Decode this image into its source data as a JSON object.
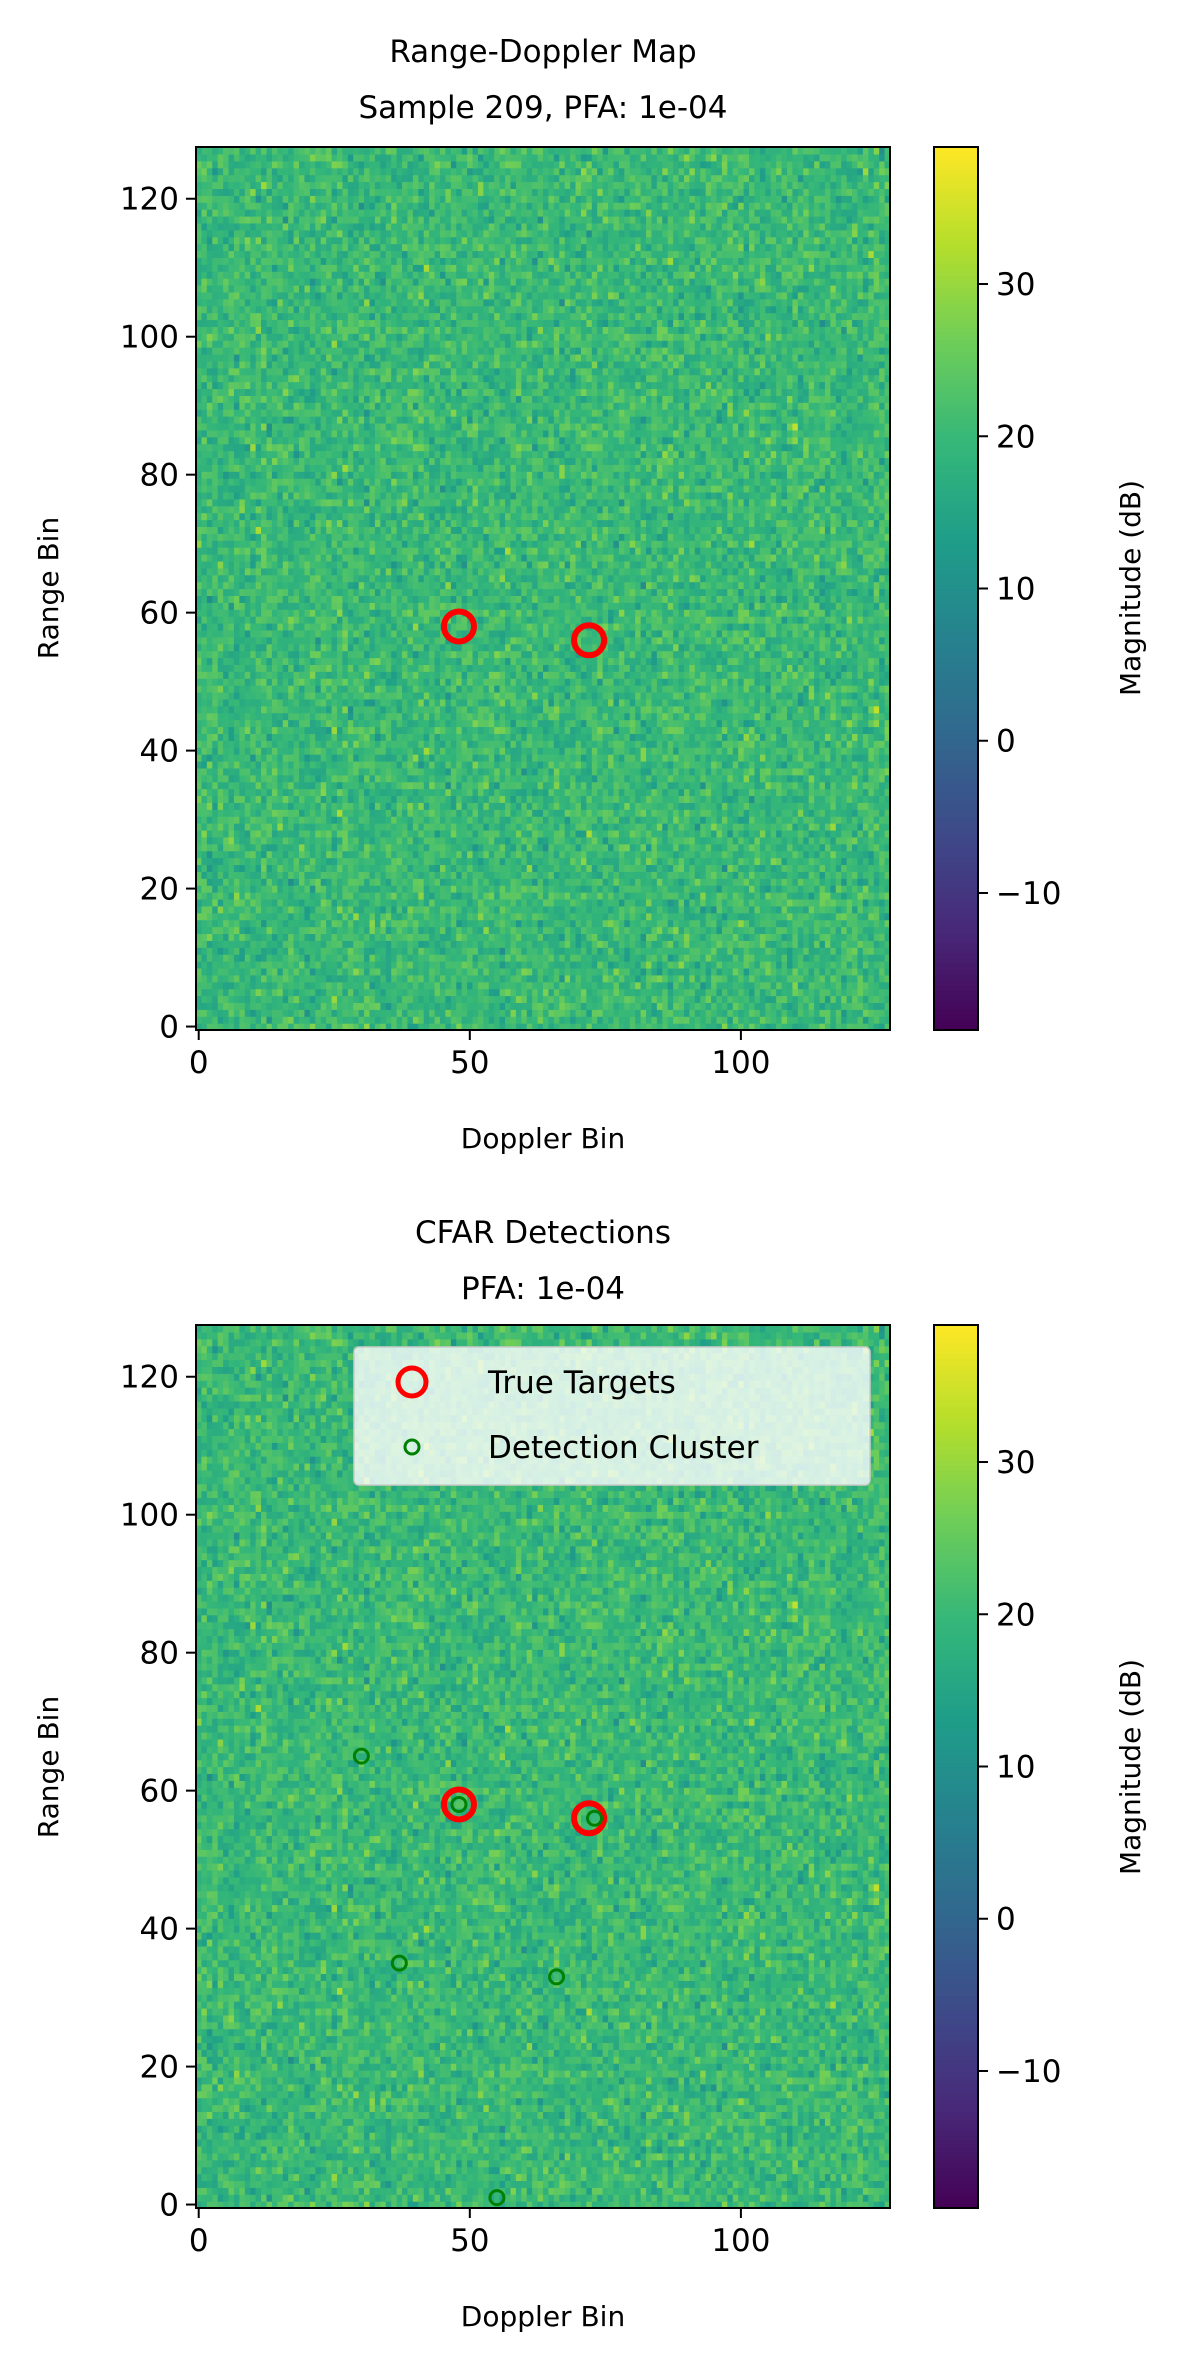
{
  "colorbar": {
    "label": "Magnitude (dB)",
    "range": [
      -19,
      39
    ],
    "ticks": [
      -10,
      0,
      10,
      20,
      30
    ],
    "tick_labels": [
      "−10",
      "0",
      "10",
      "20",
      "30"
    ],
    "colormap": "viridis"
  },
  "legend": {
    "true_targets": "True Targets",
    "detection_cluster": "Detection Cluster"
  },
  "colors": {
    "true_target": "#ff0000",
    "detection": "#008000"
  },
  "chart_data": [
    {
      "type": "heatmap",
      "title": "Range-Doppler Map",
      "subtitle": "Sample 209, PFA: 1e-04",
      "xlabel": "Doppler Bin",
      "ylabel": "Range Bin",
      "xlim": [
        -0.5,
        127.5
      ],
      "ylim": [
        -0.5,
        127.5
      ],
      "x_ticks": [
        0,
        50,
        100
      ],
      "y_ticks": [
        0,
        20,
        40,
        60,
        80,
        100,
        120
      ],
      "grid_size": [
        128,
        128
      ],
      "typical_magnitude_db": 20,
      "series": [
        {
          "name": "True Targets",
          "marker": "ring",
          "points": [
            [
              48,
              58
            ],
            [
              72,
              56
            ]
          ]
        }
      ]
    },
    {
      "type": "heatmap",
      "title": "CFAR Detections",
      "subtitle": "PFA: 1e-04",
      "xlabel": "Doppler Bin",
      "ylabel": "Range Bin",
      "xlim": [
        -0.5,
        127.5
      ],
      "ylim": [
        -0.5,
        127.5
      ],
      "x_ticks": [
        0,
        50,
        100
      ],
      "y_ticks": [
        0,
        20,
        40,
        60,
        80,
        100,
        120
      ],
      "grid_size": [
        128,
        128
      ],
      "typical_magnitude_db": 20,
      "legend_position": "top-right",
      "series": [
        {
          "name": "True Targets",
          "marker": "ring",
          "points": [
            [
              48,
              58
            ],
            [
              72,
              56
            ]
          ]
        },
        {
          "name": "Detection Cluster",
          "marker": "small-circle",
          "points": [
            [
              30,
              65
            ],
            [
              48,
              58
            ],
            [
              73,
              56
            ],
            [
              37,
              35
            ],
            [
              66,
              33
            ],
            [
              55,
              1
            ]
          ]
        }
      ]
    }
  ]
}
